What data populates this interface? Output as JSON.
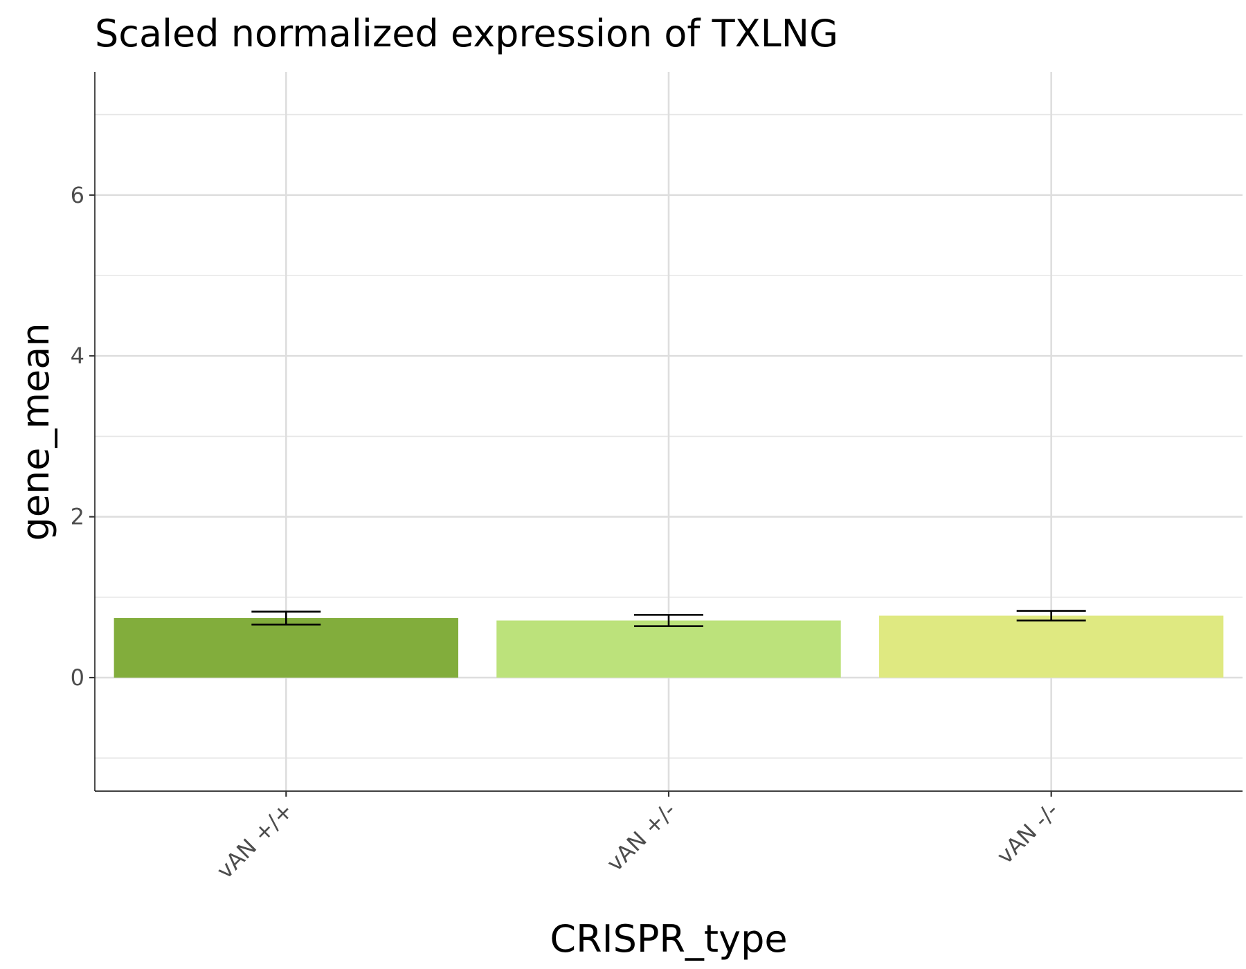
{
  "chart_data": {
    "type": "bar",
    "title": "Scaled normalized expression of TXLNG",
    "xlabel": "CRISPR_type",
    "ylabel": "gene_mean",
    "categories": [
      "vAN +/+",
      "vAN +/-",
      "vAN -/-"
    ],
    "values": [
      0.74,
      0.71,
      0.77
    ],
    "error_low": [
      0.66,
      0.64,
      0.71
    ],
    "error_high": [
      0.82,
      0.78,
      0.83
    ],
    "colors": [
      "#82ad3c",
      "#bce27b",
      "#dfe981"
    ],
    "ylim": [
      -1.4,
      7.5
    ],
    "yticks": [
      "0",
      "2",
      "4",
      "6"
    ],
    "ytick_values": [
      0,
      2,
      4,
      6
    ],
    "y_minor_gridlines": [
      -1,
      1,
      3,
      5,
      7
    ],
    "grid": true,
    "legend": "none"
  }
}
